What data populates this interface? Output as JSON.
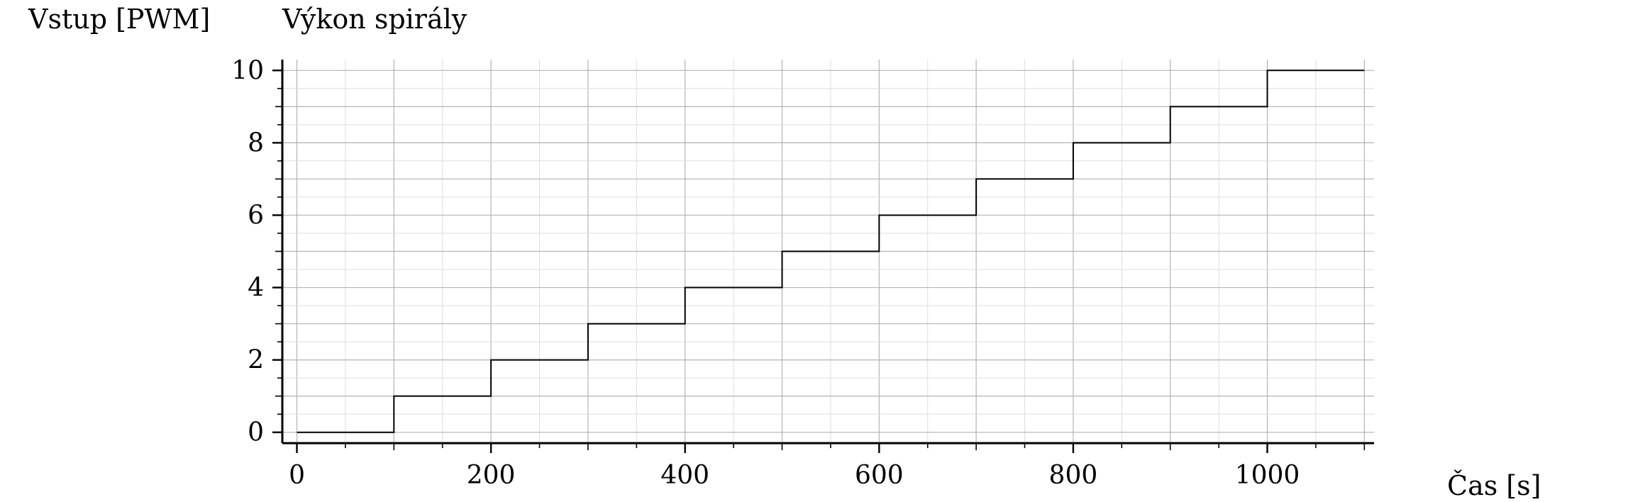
{
  "chart_data": {
    "type": "line",
    "title": "Výkon spirály",
    "ylabel": "Vstup [PWM]",
    "xlabel": "Čas [s]",
    "xlim": [
      -15,
      1110
    ],
    "ylim": [
      -0.3,
      10.3
    ],
    "x_ticks": [
      0,
      200,
      400,
      600,
      800,
      1000
    ],
    "y_ticks": [
      0,
      2,
      4,
      6,
      8,
      10
    ],
    "x_tick_labels": [
      "0",
      "200",
      "400",
      "600",
      "800",
      "1000"
    ],
    "y_tick_labels": [
      "0",
      "2",
      "4",
      "6",
      "8",
      "10"
    ],
    "grid": true,
    "step": "post",
    "series": [
      {
        "color": "#000000",
        "x": [
          0,
          100,
          200,
          300,
          400,
          500,
          600,
          700,
          800,
          900,
          1000,
          1100
        ],
        "y": [
          0,
          1,
          2,
          3,
          4,
          5,
          6,
          7,
          8,
          9,
          10,
          10
        ]
      }
    ]
  }
}
